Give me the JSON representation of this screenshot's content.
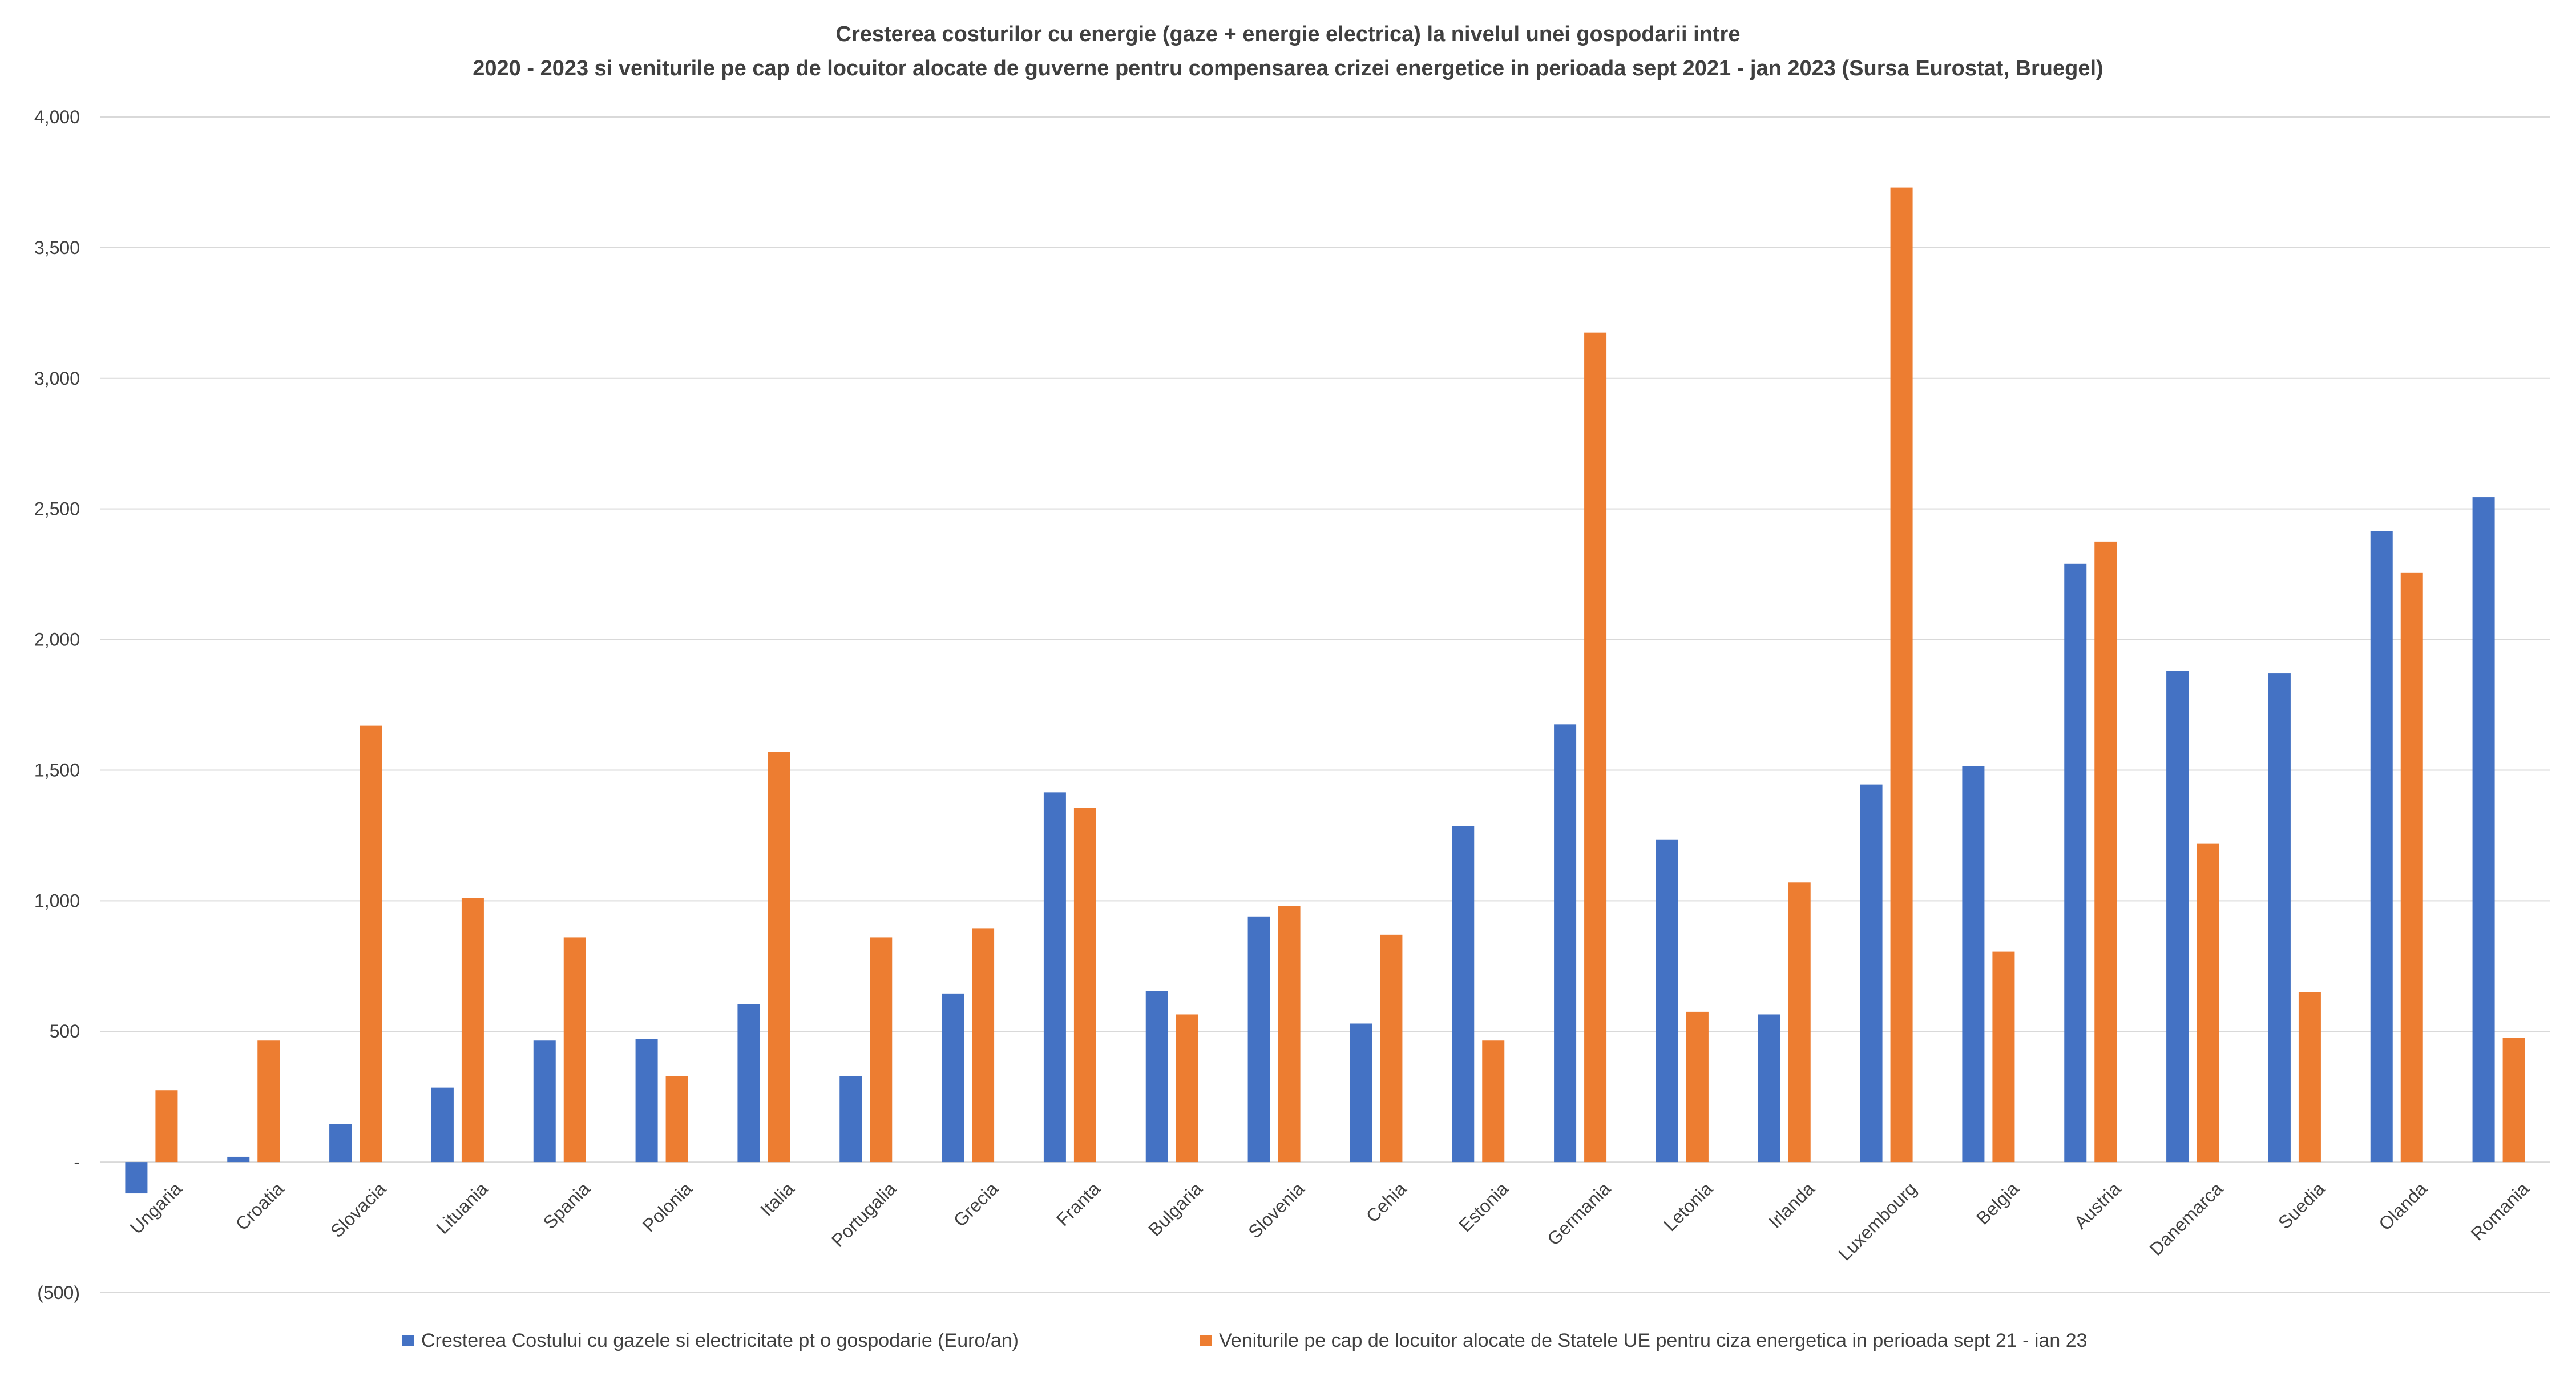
{
  "chart_data": {
    "type": "bar",
    "title_lines": [
      "Cresterea costurilor cu energie (gaze + energie electrica) la nivelul unei gospodarii intre",
      "2020 - 2023 si veniturile pe cap de locuitor alocate de guverne pentru compensarea crizei energetice in perioada sept 2021 - jan 2023 (Sursa Eurostat, Bruegel)"
    ],
    "categories": [
      "Ungaria",
      "Croatia",
      "Slovacia",
      "Lituania",
      "Spania",
      "Polonia",
      "Italia",
      "Portugalia",
      "Grecia",
      "Franta",
      "Bulgaria",
      "Slovenia",
      "Cehia",
      "Estonia",
      "Germania",
      "Letonia",
      "Irlanda",
      "Luxembourg",
      "Belgia",
      "Austria",
      "Danemarca",
      "Suedia",
      "Olanda",
      "Romania"
    ],
    "series": [
      {
        "name": "Cresterea Costului cu gazele si electricitate pt o gospodarie (Euro/an)",
        "color": "#4472c4",
        "values": [
          -120,
          20,
          145,
          285,
          465,
          470,
          605,
          330,
          645,
          1415,
          655,
          940,
          530,
          1285,
          1675,
          1235,
          565,
          1445,
          1515,
          2290,
          1880,
          1870,
          2415,
          2545
        ]
      },
      {
        "name": "Veniturile pe cap de locuitor alocate de Statele UE pentru ciza energetica in perioada sept 21 - ian 23",
        "color": "#ed7d31",
        "values": [
          275,
          465,
          1670,
          1010,
          860,
          330,
          1570,
          860,
          895,
          1355,
          565,
          980,
          870,
          465,
          3175,
          575,
          1070,
          3730,
          805,
          2375,
          1220,
          650,
          2255,
          475
        ]
      }
    ],
    "y_ticks": [
      {
        "value": 4000,
        "label": "4,000"
      },
      {
        "value": 3500,
        "label": "3,500"
      },
      {
        "value": 3000,
        "label": "3,000"
      },
      {
        "value": 2500,
        "label": "2,500"
      },
      {
        "value": 2000,
        "label": "2,000"
      },
      {
        "value": 1500,
        "label": "1,500"
      },
      {
        "value": 1000,
        "label": "1,000"
      },
      {
        "value": 500,
        "label": "500"
      },
      {
        "value": 0,
        "label": "-"
      },
      {
        "value": -500,
        "label": "(500)"
      }
    ],
    "ylim": [
      -500,
      4000
    ],
    "xlabel": "",
    "ylabel": "",
    "grid": true,
    "legend_position": "bottom"
  }
}
